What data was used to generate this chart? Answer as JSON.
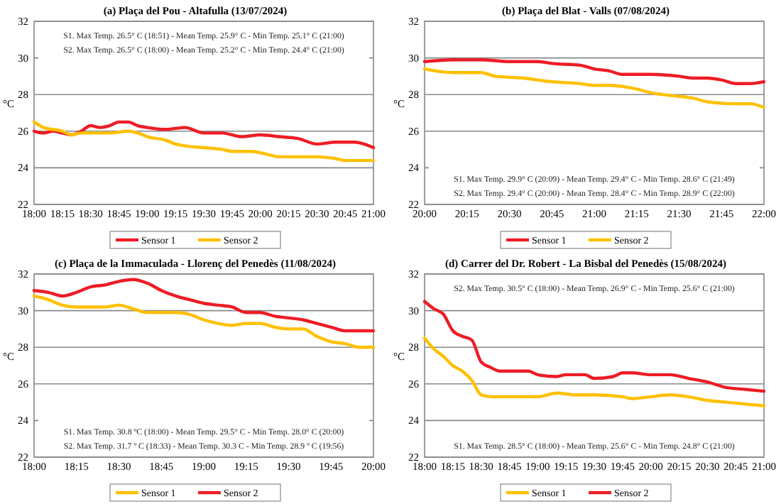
{
  "chart_data": [
    {
      "type": "line",
      "title": "(a) Plaça del Pou - Altafulla (13/07/2024)",
      "ylabel": "°C",
      "xlim": [
        18,
        21
      ],
      "ylim": [
        22,
        32
      ],
      "yticks": [
        22,
        24,
        26,
        28,
        30,
        32
      ],
      "xticks": [
        {
          "value": 18,
          "label": "18:00"
        },
        {
          "value": 18.25,
          "label": "18:15"
        },
        {
          "value": 18.5,
          "label": "18:30"
        },
        {
          "value": 18.75,
          "label": "18:45"
        },
        {
          "value": 19,
          "label": "19:00"
        },
        {
          "value": 19.25,
          "label": "19:15"
        },
        {
          "value": 19.5,
          "label": "19:30"
        },
        {
          "value": 19.75,
          "label": "19:45"
        },
        {
          "value": 20,
          "label": "20:00"
        },
        {
          "value": 20.25,
          "label": "20:15"
        },
        {
          "value": 20.5,
          "label": "20:30"
        },
        {
          "value": 20.75,
          "label": "20:45"
        },
        {
          "value": 21,
          "label": "21:00"
        }
      ],
      "grid": "y",
      "legend": "bottom",
      "marker": "none",
      "line_style": "solid",
      "annotations": [
        "S1. Max Temp. 26.5° C (18:51) - Mean Temp. 25.9° C -  Min Temp. 25.1° C (21:00)",
        "S2. Max Temp. 26.5° C (18:00) - Mean Temp. 25.2° C -  Min Temp. 24.4° C (21:00)"
      ],
      "series": [
        {
          "name": "Sensor 1",
          "color": "#ee1c25",
          "x": [
            18,
            18.0833,
            18.1667,
            18.25,
            18.3333,
            18.4167,
            18.5,
            18.5833,
            18.6667,
            18.75,
            18.8333,
            18.9167,
            19,
            19.1667,
            19.3333,
            19.5,
            19.6667,
            19.75,
            19.8333,
            20,
            20.1667,
            20.3333,
            20.5,
            20.6667,
            20.8333,
            20.9167,
            21
          ],
          "values": [
            26.0,
            25.9,
            26.0,
            25.9,
            25.8,
            26.0,
            26.3,
            26.2,
            26.3,
            26.5,
            26.5,
            26.3,
            26.2,
            26.1,
            26.2,
            25.9,
            25.9,
            25.8,
            25.7,
            25.8,
            25.7,
            25.6,
            25.3,
            25.4,
            25.4,
            25.3,
            25.1
          ]
        },
        {
          "name": "Sensor 2",
          "color": "#ffc000",
          "x": [
            18,
            18.0833,
            18.25,
            18.3333,
            18.4167,
            18.5,
            18.6667,
            18.8333,
            18.9167,
            19,
            19.1667,
            19.25,
            19.3333,
            19.5,
            19.6667,
            19.75,
            19.9167,
            20.0833,
            20.1667,
            20.3333,
            20.5,
            20.6667,
            20.75,
            20.9167,
            21
          ],
          "values": [
            26.5,
            26.2,
            26.0,
            25.8,
            25.9,
            25.9,
            25.9,
            26.0,
            25.9,
            25.7,
            25.5,
            25.3,
            25.2,
            25.1,
            25.0,
            24.9,
            24.9,
            24.7,
            24.6,
            24.6,
            24.6,
            24.5,
            24.4,
            24.4,
            24.4
          ]
        }
      ]
    },
    {
      "type": "line",
      "title": "(b) Plaça del Blat - Valls (07/08/2024)",
      "ylabel": "°C",
      "xlim": [
        20,
        22
      ],
      "ylim": [
        22,
        32
      ],
      "yticks": [
        22,
        24,
        26,
        28,
        30,
        32
      ],
      "xticks": [
        {
          "value": 20,
          "label": "20:00"
        },
        {
          "value": 20.25,
          "label": "20:15"
        },
        {
          "value": 20.5,
          "label": "20:30"
        },
        {
          "value": 20.75,
          "label": "20:45"
        },
        {
          "value": 21,
          "label": "21:00"
        },
        {
          "value": 21.25,
          "label": "21:15"
        },
        {
          "value": 21.5,
          "label": "21:30"
        },
        {
          "value": 21.75,
          "label": "21:45"
        },
        {
          "value": 22,
          "label": "22:00"
        }
      ],
      "grid": "y",
      "legend": "bottom",
      "marker": "none",
      "line_style": "solid",
      "annotations": [
        "S1. Max Temp. 29.9° C (20:09) - Mean Temp. 29.4° C -  Min Temp. 28.6° C (21:49)",
        "S2. Max Temp. 29.4° C (20:00) - Mean Temp. 28.4° C -  Min Temp. 28.9° C (22:00)"
      ],
      "series": [
        {
          "name": "Sensor 1",
          "color": "#ee1c25",
          "x": [
            20,
            20.1667,
            20.3333,
            20.5,
            20.6667,
            20.75,
            20.9167,
            21,
            21.0833,
            21.1667,
            21.3333,
            21.5,
            21.5833,
            21.6667,
            21.75,
            21.8333,
            21.9167,
            22
          ],
          "values": [
            29.8,
            29.9,
            29.9,
            29.8,
            29.8,
            29.7,
            29.6,
            29.4,
            29.3,
            29.1,
            29.1,
            29.0,
            28.9,
            28.9,
            28.8,
            28.6,
            28.6,
            28.7
          ]
        },
        {
          "name": "Sensor 2",
          "color": "#ffc000",
          "x": [
            20,
            20.1667,
            20.3333,
            20.4167,
            20.5833,
            20.75,
            20.9167,
            21,
            21.0833,
            21.25,
            21.3333,
            21.5,
            21.5833,
            21.6667,
            21.8333,
            21.9167,
            22
          ],
          "values": [
            29.4,
            29.2,
            29.2,
            29.0,
            28.9,
            28.7,
            28.6,
            28.5,
            28.5,
            28.3,
            28.1,
            27.9,
            27.8,
            27.6,
            27.5,
            27.5,
            27.3
          ]
        }
      ]
    },
    {
      "type": "line",
      "title": "(c) Plaça de la Immaculada - Llorenç del Penedès (11/08/2024)",
      "ylabel": "°C",
      "xlim": [
        18,
        20
      ],
      "ylim": [
        22,
        32
      ],
      "yticks": [
        22,
        24,
        26,
        28,
        30,
        32
      ],
      "xticks": [
        {
          "value": 18,
          "label": "18:00"
        },
        {
          "value": 18.25,
          "label": "18:15"
        },
        {
          "value": 18.5,
          "label": "18:30"
        },
        {
          "value": 18.75,
          "label": "18:45"
        },
        {
          "value": 19,
          "label": "19:00"
        },
        {
          "value": 19.25,
          "label": "19:15"
        },
        {
          "value": 19.5,
          "label": "19:30"
        },
        {
          "value": 19.75,
          "label": "19:45"
        },
        {
          "value": 20,
          "label": "20:00"
        }
      ],
      "grid": "y",
      "legend": "bottom",
      "marker": "none",
      "line_style": "solid",
      "annotations": [
        "S1. Max Temp. 30.8 ºC (18:00) - Mean Temp. 29.5° C -  Min Temp. 28.0° C (20:00)",
        "S2. Max Temp. 31.7 º C (18:33) - Mean Temp. 30.3 C -  Min Temp. 28.9 º C (19:56)"
      ],
      "series": [
        {
          "name": "Sensor 1",
          "color": "#ffc000",
          "x": [
            18,
            18.0833,
            18.1667,
            18.25,
            18.4167,
            18.5,
            18.5833,
            18.6667,
            18.75,
            18.8333,
            18.9167,
            19,
            19.0833,
            19.1667,
            19.25,
            19.3333,
            19.4167,
            19.5,
            19.5833,
            19.6667,
            19.75,
            19.8333,
            19.9167,
            20
          ],
          "values": [
            30.8,
            30.6,
            30.3,
            30.2,
            30.2,
            30.3,
            30.1,
            29.9,
            29.9,
            29.9,
            29.8,
            29.5,
            29.3,
            29.2,
            29.3,
            29.3,
            29.1,
            29.0,
            29.0,
            28.6,
            28.3,
            28.2,
            28.0,
            28.0
          ]
        },
        {
          "name": "Sensor 2",
          "color": "#ee1c25",
          "x": [
            18,
            18.0833,
            18.1667,
            18.25,
            18.3333,
            18.4167,
            18.5,
            18.5833,
            18.6667,
            18.75,
            18.8333,
            18.9167,
            19,
            19.0833,
            19.1667,
            19.25,
            19.3333,
            19.4167,
            19.5,
            19.5833,
            19.6667,
            19.75,
            19.8333,
            19.9167,
            20
          ],
          "values": [
            31.1,
            31.0,
            30.8,
            31.0,
            31.3,
            31.4,
            31.6,
            31.7,
            31.5,
            31.1,
            30.8,
            30.6,
            30.4,
            30.3,
            30.2,
            29.9,
            29.9,
            29.7,
            29.6,
            29.5,
            29.3,
            29.1,
            28.9,
            28.9,
            28.9
          ]
        }
      ]
    },
    {
      "type": "line",
      "title": "(d) Carrer del Dr. Robert - La Bisbal del Penedès (15/08/2024)",
      "ylabel": "°C",
      "xlim": [
        18,
        21
      ],
      "ylim": [
        22,
        32
      ],
      "yticks": [
        22,
        24,
        26,
        28,
        30,
        32
      ],
      "xticks": [
        {
          "value": 18,
          "label": "18:00"
        },
        {
          "value": 18.25,
          "label": "18:15"
        },
        {
          "value": 18.5,
          "label": "18:30"
        },
        {
          "value": 18.75,
          "label": "18:45"
        },
        {
          "value": 19,
          "label": "19:00"
        },
        {
          "value": 19.25,
          "label": "19:15"
        },
        {
          "value": 19.5,
          "label": "19:30"
        },
        {
          "value": 19.75,
          "label": "19:45"
        },
        {
          "value": 20,
          "label": "20:00"
        },
        {
          "value": 20.25,
          "label": "20:15"
        },
        {
          "value": 20.5,
          "label": "20:30"
        },
        {
          "value": 20.75,
          "label": "20:45"
        },
        {
          "value": 21,
          "label": "21:00"
        }
      ],
      "grid": "y",
      "legend": "bottom",
      "marker": "none",
      "line_style": "solid",
      "annotations": [
        "S2. Max Temp. 30.5° C (18:00) - Mean Temp. 26.9° C -  Min Temp. 25.6° C (21:00)",
        "S1. Max Temp. 28.5° C (18:00) - Mean Temp. 25.6° C -  Min Temp. 24.8° C (21:00)"
      ],
      "series": [
        {
          "name": "Sensor 1",
          "color": "#ffc000",
          "x": [
            18,
            18.0833,
            18.1667,
            18.25,
            18.3333,
            18.4167,
            18.5,
            18.5833,
            18.75,
            19,
            19.1667,
            19.3333,
            19.5,
            19.75,
            19.8333,
            20,
            20.1667,
            20.3333,
            20.5,
            20.6667,
            20.8333,
            21
          ],
          "values": [
            28.5,
            27.9,
            27.5,
            27.0,
            26.7,
            26.2,
            25.4,
            25.3,
            25.3,
            25.3,
            25.5,
            25.4,
            25.4,
            25.3,
            25.2,
            25.3,
            25.4,
            25.3,
            25.1,
            25.0,
            24.9,
            24.8
          ]
        },
        {
          "name": "Sensor 2",
          "color": "#ee1c25",
          "x": [
            18,
            18.0833,
            18.1667,
            18.25,
            18.3333,
            18.4167,
            18.5,
            18.5833,
            18.6667,
            18.8333,
            18.9167,
            19,
            19.1667,
            19.25,
            19.4167,
            19.5,
            19.6667,
            19.75,
            19.8333,
            20,
            20.1667,
            20.3333,
            20.5,
            20.6667,
            20.8333,
            21
          ],
          "values": [
            30.5,
            30.1,
            29.8,
            28.9,
            28.6,
            28.4,
            27.2,
            26.9,
            26.7,
            26.7,
            26.7,
            26.5,
            26.4,
            26.5,
            26.5,
            26.3,
            26.4,
            26.6,
            26.6,
            26.5,
            26.5,
            26.3,
            26.1,
            25.8,
            25.7,
            25.6
          ]
        }
      ]
    }
  ]
}
